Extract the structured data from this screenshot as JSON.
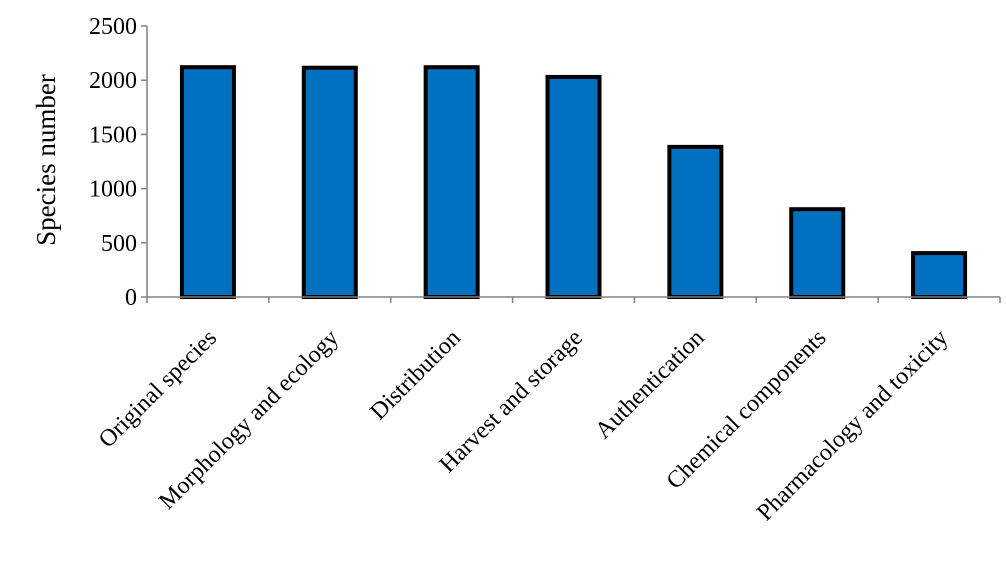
{
  "chart_data": {
    "type": "bar",
    "title": "",
    "xlabel": "",
    "ylabel": "Species number",
    "categories": [
      "Original species",
      "Morphology and ecology",
      "Distribution",
      "Harvest and storage",
      "Authentication",
      "Chemical components",
      "Pharmacology and toxicity"
    ],
    "values": [
      2120,
      2115,
      2120,
      2030,
      1385,
      810,
      405
    ],
    "ylim": [
      0,
      2500
    ],
    "yticks": [
      0,
      500,
      1000,
      1500,
      2000,
      2500
    ],
    "grid": false,
    "legend": "none",
    "colors": {
      "bar_fill": "#0070C0",
      "bar_stroke": "#000000",
      "axis": "#808080"
    }
  }
}
